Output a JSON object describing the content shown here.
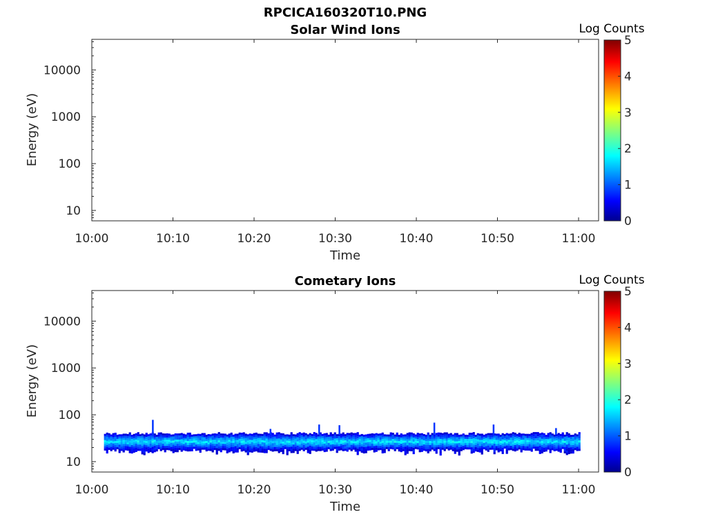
{
  "figure_title": "RPCICA160320T10.PNG",
  "colors": {
    "colormap": [
      "#00008f",
      "#0000ff",
      "#00ffff",
      "#ffff00",
      "#ff0000",
      "#800000"
    ],
    "axis": "#262626"
  },
  "chart_data": [
    {
      "type": "heatmap",
      "title": "Solar Wind Ions",
      "xlabel": "Time",
      "ylabel": "Energy (eV)",
      "x_ticks": [
        "10:00",
        "10:10",
        "10:20",
        "10:30",
        "10:40",
        "10:50",
        "11:00"
      ],
      "x_range_minutes": [
        0,
        62
      ],
      "y_scale": "log",
      "ylim": [
        6,
        45000
      ],
      "y_ticks": [
        10,
        100,
        1000,
        10000
      ],
      "y_tick_labels": [
        "10",
        "100",
        "1000",
        "10000"
      ],
      "colorbar": {
        "label": "Log Counts",
        "range": [
          0,
          5
        ],
        "ticks": [
          "0",
          "1",
          "2",
          "3",
          "4",
          "5"
        ]
      },
      "data_present": false
    },
    {
      "type": "heatmap",
      "title": "Cometary Ions",
      "xlabel": "Time",
      "ylabel": "Energy (eV)",
      "x_ticks": [
        "10:00",
        "10:10",
        "10:20",
        "10:30",
        "10:40",
        "10:50",
        "11:00"
      ],
      "x_range_minutes": [
        0,
        62
      ],
      "y_scale": "log",
      "ylim": [
        6,
        45000
      ],
      "y_ticks": [
        10,
        100,
        1000,
        10000
      ],
      "y_tick_labels": [
        "10",
        "100",
        "1000",
        "10000"
      ],
      "colorbar": {
        "label": "Log Counts",
        "range": [
          0,
          5
        ],
        "ticks": [
          "0",
          "1",
          "2",
          "3",
          "4",
          "5"
        ]
      },
      "data_present": true,
      "time_coverage_minutes": [
        1.5,
        60
      ],
      "band": {
        "energy_low_eV": 18,
        "energy_high_eV": 40,
        "core_energy_eV": 28,
        "core_log_counts": 1.7,
        "edge_log_counts": 0.5
      },
      "spikes": [
        {
          "t_min": 7.5,
          "energy_eV": 78
        },
        {
          "t_min": 22,
          "energy_eV": 50
        },
        {
          "t_min": 28,
          "energy_eV": 62
        },
        {
          "t_min": 30.5,
          "energy_eV": 60
        },
        {
          "t_min": 42.2,
          "energy_eV": 68
        },
        {
          "t_min": 49.5,
          "energy_eV": 62
        },
        {
          "t_min": 57.2,
          "energy_eV": 52
        }
      ]
    }
  ]
}
